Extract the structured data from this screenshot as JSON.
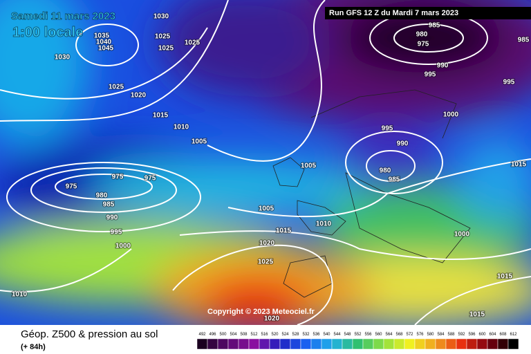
{
  "header": {
    "date": "Samedi 11 mars 2023",
    "time": "1:00 locale",
    "run": "Run GFS 12 Z du Mardi 7 mars 2023"
  },
  "copyright": "Copyright © 2023 Meteociel.fr",
  "footer": {
    "title": "Géop. Z500 & pression au sol",
    "lead": "(+ 84h)"
  },
  "isobar_labels": [
    1030,
    1025,
    1025,
    1025,
    1035,
    1040,
    1045,
    1030,
    1025,
    1020,
    1015,
    1010,
    1005,
    985,
    980,
    975,
    985,
    990,
    995,
    995,
    1000,
    995,
    990,
    980,
    985,
    1005,
    1015,
    975,
    975,
    975,
    980,
    985,
    990,
    995,
    1000,
    1005,
    1010,
    1015,
    1020,
    1025,
    1000,
    1015,
    1015,
    1010,
    1020
  ],
  "legend": {
    "values": [
      492,
      496,
      500,
      504,
      508,
      512,
      516,
      520,
      524,
      528,
      532,
      536,
      540,
      544,
      548,
      552,
      556,
      560,
      564,
      568,
      572,
      576,
      580,
      584,
      588,
      592,
      596,
      600,
      604,
      608,
      612
    ]
  }
}
